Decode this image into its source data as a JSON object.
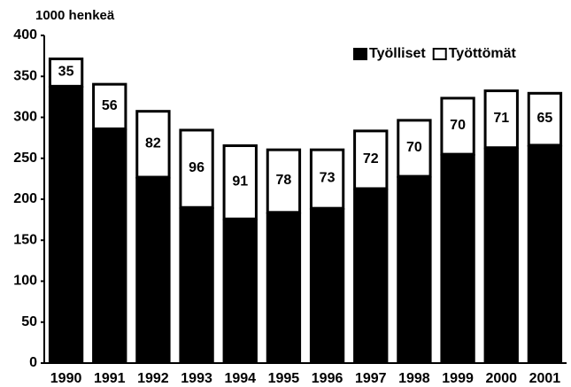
{
  "chart_data": {
    "type": "stacked-bar",
    "y_axis_label": "1000 henkeä",
    "categories": [
      "1990",
      "1991",
      "1992",
      "1993",
      "1994",
      "1995",
      "1996",
      "1997",
      "1998",
      "1999",
      "2000",
      "2001"
    ],
    "series": [
      {
        "name": "Työlliset",
        "color": "#000000",
        "values": [
          338,
          286,
          227,
          190,
          176,
          184,
          189,
          213,
          228,
          255,
          263,
          266
        ]
      },
      {
        "name": "Työttömät",
        "color": "#ffffff",
        "values": [
          35,
          56,
          82,
          96,
          91,
          78,
          73,
          72,
          70,
          70,
          71,
          65
        ]
      }
    ],
    "ylim": [
      0,
      400
    ],
    "yticks": [
      0,
      50,
      100,
      150,
      200,
      250,
      300,
      350,
      400
    ],
    "legend": "top-right"
  }
}
